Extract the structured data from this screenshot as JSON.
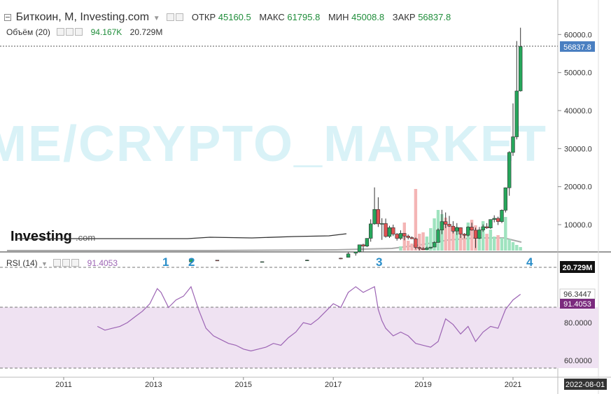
{
  "header": {
    "title": "Биткоин, М, Investing.com",
    "open_label": "ОТКР",
    "open_value": "45160.5",
    "high_label": "МАКС",
    "high_value": "61795.8",
    "low_label": "МИН",
    "low_value": "45008.8",
    "close_label": "ЗАКР",
    "close_value": "56837.8"
  },
  "volume_legend": {
    "label": "Объём (20)",
    "value1": "94.167K",
    "value2": "20.729M"
  },
  "rsi_legend": {
    "label": "RSI (14)",
    "value": "91.4053"
  },
  "watermark": "T.ME/CRYPTO_MARKET",
  "logo": {
    "text": "Investing",
    "suffix": ".com"
  },
  "price_axis": {
    "ticks": [
      "60000.0",
      "50000.0",
      "40000.0",
      "30000.0",
      "20000.0",
      "10000.0"
    ],
    "current_price": "56837.8"
  },
  "rsi_axis": {
    "ticks": [
      "80.0000",
      "60.0000"
    ],
    "badges": [
      "20.729M",
      "96.3447",
      "91.4053"
    ]
  },
  "time_axis": {
    "ticks": [
      "2011",
      "2013",
      "2015",
      "2017",
      "2019",
      "2021"
    ],
    "cursor_label": "2022-08-01"
  },
  "annotations": [
    "1",
    "2",
    "3",
    "4"
  ],
  "colors": {
    "up": "#26a65b",
    "down": "#e05252",
    "rsi_line": "#9c64b4",
    "rsi_band": "#efe2f2",
    "badge_blue": "#4a7fc1",
    "badge_purple": "#7b2a7e",
    "watermark": "#d9f2f7",
    "annotation": "#2a8ec9"
  },
  "chart_data": [
    {
      "type": "candlestick",
      "ylim": [
        0,
        64000
      ],
      "yticks": [
        10000,
        20000,
        30000,
        40000,
        50000,
        60000
      ],
      "series": [
        {
          "x": "2013-11",
          "o": 200,
          "h": 1150,
          "l": 180,
          "c": 1000
        },
        {
          "x": "2014-06",
          "o": 650,
          "h": 700,
          "l": 550,
          "c": 630
        },
        {
          "x": "2015-06",
          "o": 230,
          "h": 260,
          "l": 220,
          "c": 260
        },
        {
          "x": "2016-06",
          "o": 530,
          "h": 780,
          "l": 520,
          "c": 670
        },
        {
          "x": "2017-03",
          "o": 1180,
          "h": 1300,
          "l": 900,
          "c": 1070
        },
        {
          "x": "2017-05",
          "o": 1400,
          "h": 2700,
          "l": 1350,
          "c": 2300
        },
        {
          "x": "2017-07",
          "o": 2500,
          "h": 2900,
          "l": 1850,
          "c": 2850
        },
        {
          "x": "2017-08",
          "o": 2850,
          "h": 4700,
          "l": 2700,
          "c": 4700
        },
        {
          "x": "2017-09",
          "o": 4700,
          "h": 5000,
          "l": 2970,
          "c": 4350
        },
        {
          "x": "2017-10",
          "o": 4350,
          "h": 6400,
          "l": 4100,
          "c": 6400
        },
        {
          "x": "2017-11",
          "o": 6400,
          "h": 11400,
          "l": 5500,
          "c": 10200
        },
        {
          "x": "2017-12",
          "o": 10200,
          "h": 19800,
          "l": 10000,
          "c": 14000
        },
        {
          "x": "2018-01",
          "o": 14000,
          "h": 17200,
          "l": 9400,
          "c": 10200
        },
        {
          "x": "2018-02",
          "o": 10200,
          "h": 11700,
          "l": 6000,
          "c": 10300
        },
        {
          "x": "2018-03",
          "o": 10300,
          "h": 11600,
          "l": 6600,
          "c": 6900
        },
        {
          "x": "2018-04",
          "o": 6900,
          "h": 9700,
          "l": 6500,
          "c": 9200
        },
        {
          "x": "2018-05",
          "o": 9200,
          "h": 10000,
          "l": 7000,
          "c": 7500
        },
        {
          "x": "2018-06",
          "o": 7500,
          "h": 7800,
          "l": 5800,
          "c": 6400
        },
        {
          "x": "2018-07",
          "o": 6400,
          "h": 8500,
          "l": 6000,
          "c": 7700
        },
        {
          "x": "2018-08",
          "o": 7700,
          "h": 7800,
          "l": 5900,
          "c": 7000
        },
        {
          "x": "2018-09",
          "o": 7000,
          "h": 7400,
          "l": 6100,
          "c": 6600
        },
        {
          "x": "2018-10",
          "o": 6600,
          "h": 6900,
          "l": 6200,
          "c": 6300
        },
        {
          "x": "2018-11",
          "o": 6300,
          "h": 6600,
          "l": 3500,
          "c": 4000
        },
        {
          "x": "2018-12",
          "o": 4000,
          "h": 4200,
          "l": 3200,
          "c": 3700
        },
        {
          "x": "2019-01",
          "o": 3700,
          "h": 4100,
          "l": 3400,
          "c": 3450
        },
        {
          "x": "2019-02",
          "o": 3450,
          "h": 4200,
          "l": 3400,
          "c": 3850
        },
        {
          "x": "2019-03",
          "o": 3850,
          "h": 4100,
          "l": 3700,
          "c": 4100
        },
        {
          "x": "2019-04",
          "o": 4100,
          "h": 5600,
          "l": 4100,
          "c": 5300
        },
        {
          "x": "2019-05",
          "o": 5300,
          "h": 9000,
          "l": 5300,
          "c": 8600
        },
        {
          "x": "2019-06",
          "o": 8600,
          "h": 13900,
          "l": 7500,
          "c": 10800
        },
        {
          "x": "2019-07",
          "o": 10800,
          "h": 13200,
          "l": 9100,
          "c": 10100
        },
        {
          "x": "2019-08",
          "o": 10100,
          "h": 12300,
          "l": 9400,
          "c": 9600
        },
        {
          "x": "2019-09",
          "o": 9600,
          "h": 10900,
          "l": 7700,
          "c": 8300
        },
        {
          "x": "2019-10",
          "o": 8300,
          "h": 10400,
          "l": 7300,
          "c": 9200
        },
        {
          "x": "2019-11",
          "o": 9200,
          "h": 9300,
          "l": 6500,
          "c": 7500
        },
        {
          "x": "2019-12",
          "o": 7500,
          "h": 7750,
          "l": 6400,
          "c": 7200
        },
        {
          "x": "2020-01",
          "o": 7200,
          "h": 9550,
          "l": 6900,
          "c": 9350
        },
        {
          "x": "2020-02",
          "o": 9350,
          "h": 10500,
          "l": 8400,
          "c": 8550
        },
        {
          "x": "2020-03",
          "o": 8550,
          "h": 9200,
          "l": 3850,
          "c": 6400
        },
        {
          "x": "2020-04",
          "o": 6400,
          "h": 9400,
          "l": 6200,
          "c": 8600
        },
        {
          "x": "2020-05",
          "o": 8600,
          "h": 10050,
          "l": 8100,
          "c": 9450
        },
        {
          "x": "2020-06",
          "o": 9450,
          "h": 10400,
          "l": 8900,
          "c": 9150
        },
        {
          "x": "2020-07",
          "o": 9150,
          "h": 11400,
          "l": 8900,
          "c": 11350
        },
        {
          "x": "2020-08",
          "o": 11350,
          "h": 12450,
          "l": 10600,
          "c": 11650
        },
        {
          "x": "2020-09",
          "o": 11650,
          "h": 12100,
          "l": 9900,
          "c": 10800
        },
        {
          "x": "2020-10",
          "o": 10800,
          "h": 14000,
          "l": 10400,
          "c": 13800
        },
        {
          "x": "2020-11",
          "o": 13800,
          "h": 19800,
          "l": 13200,
          "c": 19700
        },
        {
          "x": "2020-12",
          "o": 19700,
          "h": 29300,
          "l": 17600,
          "c": 29000
        },
        {
          "x": "2021-01",
          "o": 29000,
          "h": 41900,
          "l": 28100,
          "c": 33100
        },
        {
          "x": "2021-02",
          "o": 33100,
          "h": 58300,
          "l": 32400,
          "c": 45160
        },
        {
          "x": "2021-03",
          "o": 45160.5,
          "h": 61795.8,
          "l": 45008.8,
          "c": 56837.8
        }
      ]
    },
    {
      "type": "bar",
      "name": "Объём (20)",
      "categories": [
        "2018-07",
        "2018-08",
        "2018-09",
        "2018-10",
        "2018-11",
        "2018-12",
        "2019-01",
        "2019-02",
        "2019-03",
        "2019-04",
        "2019-05",
        "2019-06",
        "2019-07",
        "2019-08",
        "2019-09",
        "2019-10",
        "2019-11",
        "2019-12",
        "2020-01",
        "2020-02",
        "2020-03",
        "2020-04",
        "2020-05",
        "2020-06",
        "2020-07",
        "2020-08",
        "2020-09",
        "2020-10",
        "2020-11",
        "2020-12",
        "2021-01",
        "2021-02",
        "2021-03"
      ],
      "values": [
        6,
        40,
        14,
        10,
        88,
        24,
        26,
        20,
        32,
        46,
        58,
        52,
        47,
        36,
        30,
        34,
        26,
        24,
        40,
        44,
        36,
        30,
        42,
        24,
        30,
        20,
        22,
        18,
        48,
        16,
        12,
        8,
        5
      ]
    },
    {
      "type": "line",
      "name": "RSI (14)",
      "ylim": [
        52,
        100
      ],
      "yticks": [
        60,
        80
      ],
      "x": [
        "2011-10",
        "2011-12",
        "2012-02",
        "2012-04",
        "2012-06",
        "2012-08",
        "2012-10",
        "2012-12",
        "2013-02",
        "2013-03",
        "2013-05",
        "2013-07",
        "2013-09",
        "2013-11",
        "2014-01",
        "2014-03",
        "2014-05",
        "2014-07",
        "2014-09",
        "2014-11",
        "2015-01",
        "2015-03",
        "2015-05",
        "2015-07",
        "2015-09",
        "2015-11",
        "2016-01",
        "2016-03",
        "2016-05",
        "2016-07",
        "2016-09",
        "2016-11",
        "2017-01",
        "2017-03",
        "2017-05",
        "2017-07",
        "2017-09",
        "2017-11",
        "2017-12",
        "2018-01",
        "2018-02",
        "2018-03",
        "2018-05",
        "2018-07",
        "2018-09",
        "2018-11",
        "2019-01",
        "2019-03",
        "2019-05",
        "2019-07",
        "2019-09",
        "2019-11",
        "2020-01",
        "2020-03",
        "2020-05",
        "2020-07",
        "2020-09",
        "2020-11",
        "2021-01",
        "2021-03"
      ],
      "values": [
        78,
        76,
        77,
        78,
        80,
        83,
        86,
        90,
        98,
        96,
        88,
        92,
        94,
        99,
        87,
        77,
        73,
        71,
        69,
        68,
        66,
        65,
        66,
        67,
        69,
        68,
        72,
        75,
        80,
        79,
        82,
        86,
        90,
        88,
        96,
        99,
        96,
        98,
        99,
        87,
        81,
        77,
        73,
        75,
        73,
        69,
        68,
        67,
        70,
        82,
        79,
        74,
        78,
        70,
        75,
        78,
        77,
        87,
        92,
        95
      ]
    }
  ]
}
